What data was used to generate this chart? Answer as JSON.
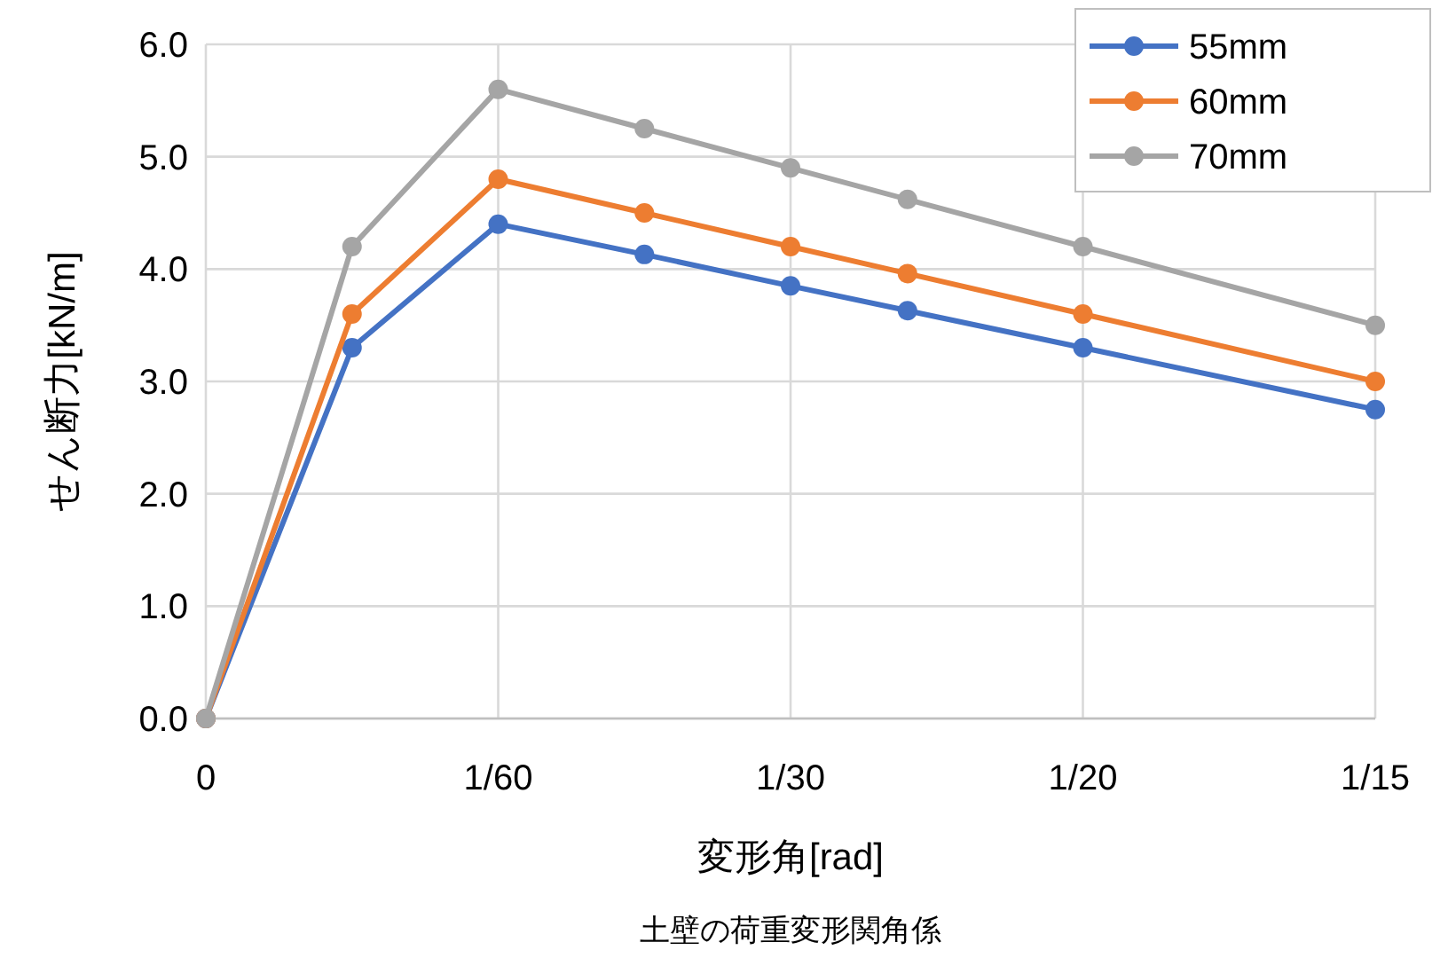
{
  "chart_data": {
    "type": "line",
    "xlabel": "変形角[rad]",
    "ylabel": "せん断力[kN/m]",
    "annotations": [
      "土壁の荷重変形関角係"
    ],
    "ylim": [
      0,
      6
    ],
    "yticks": [
      {
        "value": 0,
        "label": "0.0"
      },
      {
        "value": 1,
        "label": "1.0"
      },
      {
        "value": 2,
        "label": "2.0"
      },
      {
        "value": 3,
        "label": "3.0"
      },
      {
        "value": 4,
        "label": "4.0"
      },
      {
        "value": 5,
        "label": "5.0"
      },
      {
        "value": 6,
        "label": "6.0"
      }
    ],
    "categories": [
      "0",
      null,
      null,
      null,
      null,
      null,
      null,
      null,
      null,
      null,
      "1/60",
      null,
      null,
      null,
      null,
      null,
      null,
      null,
      null,
      null,
      "1/30",
      null,
      null,
      null,
      null,
      null,
      null,
      null,
      null,
      null,
      "1/20",
      null,
      null,
      null,
      null,
      null,
      null,
      null,
      null,
      null,
      "1/15"
    ],
    "series": [
      {
        "name": "55mm",
        "color": "#4472c4",
        "values": [
          0,
          null,
          null,
          null,
          null,
          3.3,
          null,
          null,
          null,
          null,
          4.4,
          null,
          null,
          null,
          null,
          4.13,
          null,
          null,
          null,
          null,
          3.85,
          null,
          null,
          null,
          3.63,
          null,
          null,
          null,
          null,
          null,
          3.3,
          null,
          null,
          null,
          null,
          null,
          null,
          null,
          null,
          null,
          2.75
        ]
      },
      {
        "name": "60mm",
        "color": "#ed7d31",
        "values": [
          0,
          null,
          null,
          null,
          null,
          3.6,
          null,
          null,
          null,
          null,
          4.8,
          null,
          null,
          null,
          null,
          4.5,
          null,
          null,
          null,
          null,
          4.2,
          null,
          null,
          null,
          3.96,
          null,
          null,
          null,
          null,
          null,
          3.6,
          null,
          null,
          null,
          null,
          null,
          null,
          null,
          null,
          null,
          3.0
        ]
      },
      {
        "name": "70mm",
        "color": "#a5a5a5",
        "values": [
          0,
          null,
          null,
          null,
          null,
          4.2,
          null,
          null,
          null,
          null,
          5.6,
          null,
          null,
          null,
          null,
          5.25,
          null,
          null,
          null,
          null,
          4.9,
          null,
          null,
          null,
          4.62,
          null,
          null,
          null,
          null,
          null,
          4.2,
          null,
          null,
          null,
          null,
          null,
          null,
          null,
          null,
          null,
          3.5
        ]
      }
    ],
    "grid": true,
    "legend": "top right",
    "marker": "circle",
    "line_style": "solid"
  }
}
